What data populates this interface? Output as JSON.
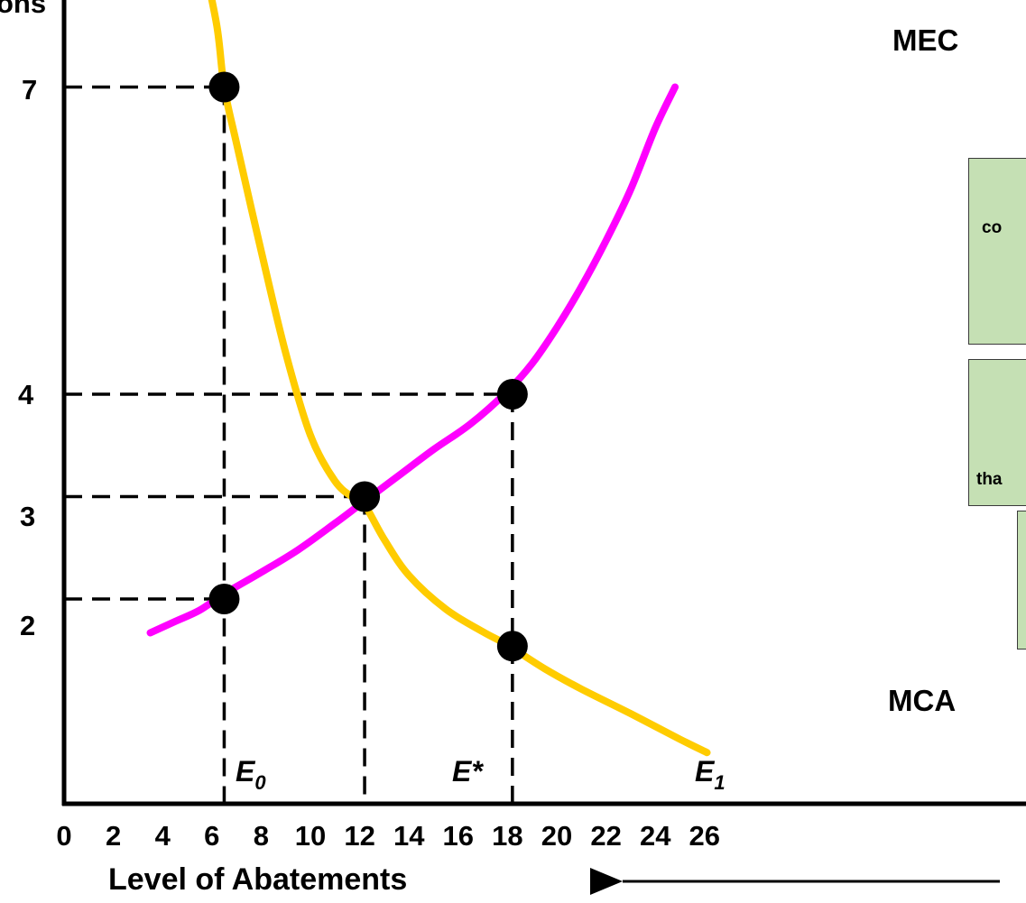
{
  "chart_data": {
    "type": "line",
    "title": "",
    "ylabel_fragment": "ons",
    "xlabel": "Level of Abatements",
    "x_ticks": [
      0,
      2,
      4,
      6,
      8,
      10,
      12,
      14,
      16,
      18,
      20,
      22,
      24,
      26
    ],
    "x_tick_labels": [
      "0",
      "2",
      "4",
      "6",
      "8",
      "10",
      "12",
      "14",
      "16",
      "18",
      "20",
      "22",
      "24",
      "26"
    ],
    "y_tick_labels": [
      "7",
      "4",
      "3",
      "2"
    ],
    "xlim": [
      0,
      26
    ],
    "ylim": [
      0,
      8
    ],
    "grid": false,
    "series": [
      {
        "name": "MEC",
        "color": "#ff00ff",
        "x": [
          3.5,
          4.5,
          5.5,
          6.5,
          8,
          9.5,
          11,
          12,
          13.5,
          15,
          16.5,
          18,
          19,
          20,
          21,
          22,
          23,
          24,
          24.8
        ],
        "y": [
          1.67,
          1.78,
          1.89,
          2.05,
          2.26,
          2.48,
          2.74,
          2.92,
          3.19,
          3.46,
          3.71,
          4.03,
          4.3,
          4.65,
          5.05,
          5.5,
          6.0,
          6.6,
          7.0
        ]
      },
      {
        "name": "MCA",
        "color": "#ffcc00",
        "x": [
          5.6,
          6.2,
          6.5,
          7,
          8,
          9,
          10,
          11,
          11.8,
          12.2,
          13,
          14,
          15.5,
          17,
          18,
          19.5,
          21,
          23,
          25,
          26.1
        ],
        "y": [
          8.3,
          7.6,
          7.0,
          6.45,
          5.4,
          4.4,
          3.6,
          3.15,
          2.98,
          2.92,
          2.58,
          2.23,
          1.9,
          1.68,
          1.55,
          1.32,
          1.12,
          0.88,
          0.63,
          0.5
        ]
      }
    ],
    "points": [
      {
        "x": 6.5,
        "y": 7.0
      },
      {
        "x": 6.5,
        "y": 2.0
      },
      {
        "x": 12.2,
        "y": 3.0
      },
      {
        "x": 18.2,
        "y": 4.0
      },
      {
        "x": 18.2,
        "y": 1.54
      }
    ],
    "guides": {
      "horizontal": [
        {
          "y": 7.0,
          "to_x": 6.5
        },
        {
          "y": 4.0,
          "to_x": 18.2
        },
        {
          "y": 3.0,
          "to_x": 12.2
        },
        {
          "y": 2.0,
          "to_x": 6.5
        }
      ],
      "vertical": [
        {
          "x": 6.5,
          "from_y": 7.0
        },
        {
          "x": 12.2,
          "from_y": 3.0
        },
        {
          "x": 18.2,
          "from_y": 4.0
        }
      ]
    },
    "annotations": [
      {
        "id": "E0",
        "base": "E",
        "sub": "0",
        "x": 6.5
      },
      {
        "id": "Estar",
        "base": "E*",
        "sub": "",
        "x": 12.2
      },
      {
        "id": "E1",
        "base": "E",
        "sub": "1",
        "x": 18.2
      }
    ],
    "curve_labels": {
      "MEC": "MEC",
      "MCA": "MCA"
    }
  },
  "boxes": [
    {
      "text": "co"
    },
    {
      "text": "tha"
    },
    {
      "text": ""
    }
  ]
}
